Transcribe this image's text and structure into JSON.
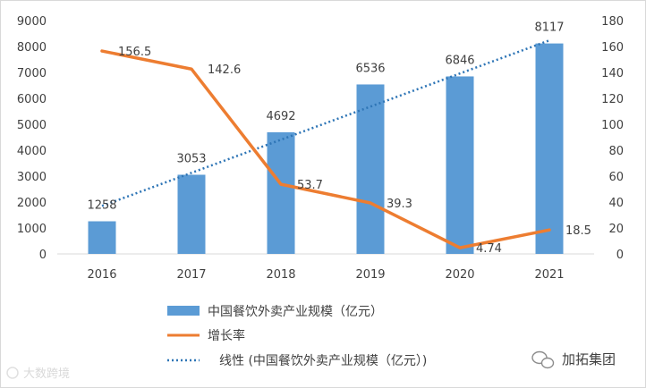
{
  "chart_data": {
    "type": "bar",
    "categories": [
      "2016",
      "2017",
      "2018",
      "2019",
      "2020",
      "2021"
    ],
    "series": [
      {
        "name": "中国餐饮外卖产业规模（亿元）",
        "kind": "bar",
        "axis": "left",
        "values": [
          1258,
          3053,
          4692,
          6536,
          6846,
          8117
        ],
        "labels": [
          "1258",
          "3053",
          "4692",
          "6536",
          "6846",
          "8117"
        ],
        "color": "#5b9bd5"
      },
      {
        "name": "增长率",
        "kind": "line",
        "axis": "right",
        "values": [
          156.5,
          142.6,
          53.7,
          39.3,
          4.74,
          18.5
        ],
        "labels": [
          "156.5",
          "142.6",
          "53.7",
          "39.3",
          "4.74",
          "18.5"
        ],
        "color": "#ed7d31"
      },
      {
        "name": "线性 (中国餐饮外卖产业规模（亿元）)",
        "kind": "trend",
        "axis": "left",
        "values": [
          1850,
          3127,
          4404,
          5681,
          6958,
          8235
        ],
        "color": "#2e75b6"
      }
    ],
    "y_left": {
      "min": 0,
      "max": 9000,
      "ticks": [
        "0",
        "1000",
        "2000",
        "3000",
        "4000",
        "5000",
        "6000",
        "7000",
        "8000",
        "9000"
      ]
    },
    "y_right": {
      "min": 0,
      "max": 180,
      "ticks": [
        "0",
        "20",
        "40",
        "60",
        "80",
        "100",
        "120",
        "140",
        "160",
        "180"
      ]
    },
    "legend_position": "bottom",
    "grid": false
  },
  "watermark": {
    "text": "大数跨境"
  },
  "brand": {
    "text": "加拓集团"
  }
}
